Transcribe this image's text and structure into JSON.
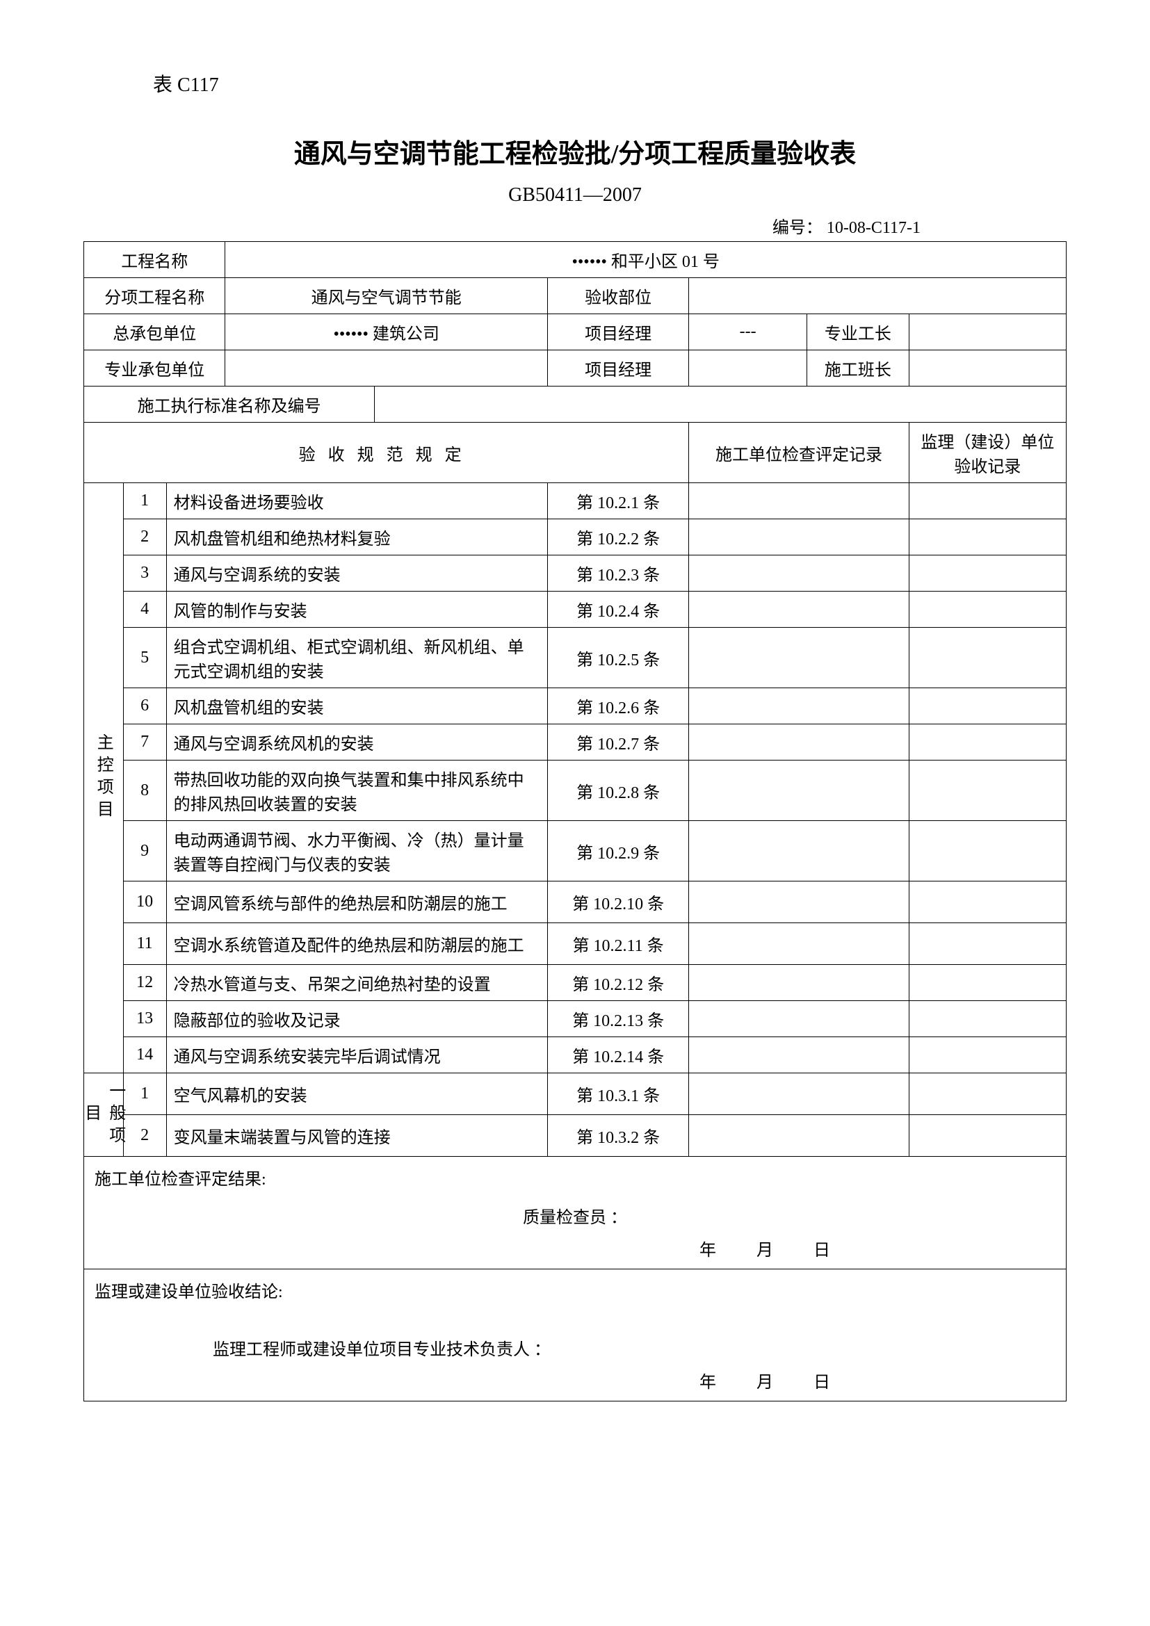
{
  "header_label": "表 C117",
  "title": "通风与空调节能工程检验批/分项工程质量验收表",
  "subtitle": "GB50411—2007",
  "doc_number_label": "编号：",
  "doc_number": "10-08-C117-1",
  "info": {
    "project_name_label": "工程名称",
    "project_name_value": "•••••• 和平小区 01 号",
    "subproject_name_label": "分项工程名称",
    "subproject_name_value": "通风与空气调节节能",
    "acceptance_dept_label": "验收部位",
    "acceptance_dept_value": "",
    "contractor_label": "总承包单位",
    "contractor_value": "•••••• 建筑公司",
    "pm_label": "项目经理",
    "pm_value": "---",
    "foreman_label": "专业工长",
    "foreman_value": "",
    "subcontractor_label": "专业承包单位",
    "subcontractor_value": "",
    "pm2_label": "项目经理",
    "pm2_value": "",
    "team_leader_label": "施工班长",
    "team_leader_value": "",
    "standard_label": "施工执行标准名称及编号",
    "standard_value": ""
  },
  "columns": {
    "spec_header": "验收规范规定",
    "check_record": "施工单位检查评定记录",
    "supervision_record": "监理（建设）单位验收记录"
  },
  "main_items_label": "主控项目",
  "main_items": [
    {
      "n": "1",
      "desc": "材料设备进场要验收",
      "ref": "第 10.2.1 条"
    },
    {
      "n": "2",
      "desc": "风机盘管机组和绝热材料复验",
      "ref": "第 10.2.2 条"
    },
    {
      "n": "3",
      "desc": "通风与空调系统的安装",
      "ref": "第 10.2.3 条"
    },
    {
      "n": "4",
      "desc": "风管的制作与安装",
      "ref": "第 10.2.4 条"
    },
    {
      "n": "5",
      "desc": "组合式空调机组、柜式空调机组、新风机组、单元式空调机组的安装",
      "ref": "第 10.2.5 条"
    },
    {
      "n": "6",
      "desc": "风机盘管机组的安装",
      "ref": "第 10.2.6 条"
    },
    {
      "n": "7",
      "desc": "通风与空调系统风机的安装",
      "ref": "第 10.2.7 条"
    },
    {
      "n": "8",
      "desc": "带热回收功能的双向换气装置和集中排风系统中的排风热回收装置的安装",
      "ref": "第 10.2.8 条"
    },
    {
      "n": "9",
      "desc": "电动两通调节阀、水力平衡阀、冷（热）量计量装置等自控阀门与仪表的安装",
      "ref": "第 10.2.9 条"
    },
    {
      "n": "10",
      "desc": "空调风管系统与部件的绝热层和防潮层的施工",
      "ref": "第 10.2.10 条"
    },
    {
      "n": "11",
      "desc": "空调水系统管道及配件的绝热层和防潮层的施工",
      "ref": "第 10.2.11 条"
    },
    {
      "n": "12",
      "desc": "冷热水管道与支、吊架之间绝热衬垫的设置",
      "ref": "第 10.2.12 条"
    },
    {
      "n": "13",
      "desc": "隐蔽部位的验收及记录",
      "ref": "第 10.2.13 条"
    },
    {
      "n": "14",
      "desc": "通风与空调系统安装完毕后调试情况",
      "ref": "第 10.2.14 条"
    }
  ],
  "general_items_label": "一般项目",
  "general_items": [
    {
      "n": "1",
      "desc": "空气风幕机的安装",
      "ref": "第 10.3.1 条"
    },
    {
      "n": "2",
      "desc": "变风量末端装置与风管的连接",
      "ref": "第 10.3.2 条"
    }
  ],
  "results": {
    "construction_result_label": "施工单位检查评定结果:",
    "quality_inspector_label": "质量检查员 ：",
    "supervision_conclusion_label": "监理或建设单位验收结论:",
    "supervision_engineer_label": "监理工程师或建设单位项目专业技术负责人 ：",
    "year": "年",
    "month": "月",
    "day": "日"
  }
}
